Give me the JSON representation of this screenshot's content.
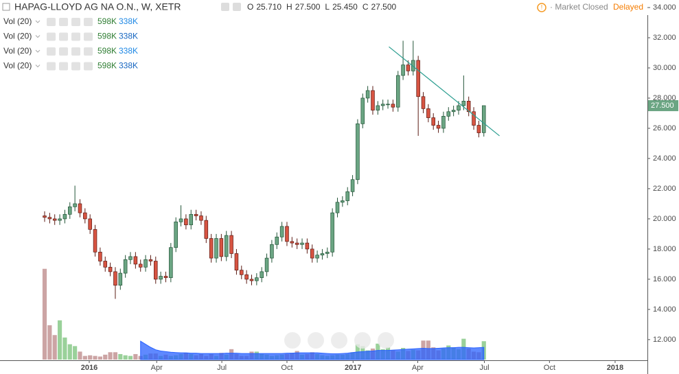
{
  "chart_data": {
    "type": "candlestick",
    "title": "HAPAG-LLOYD AG NA O.N., W, XETR",
    "ohlc_header": [
      {
        "label": "O",
        "value": "25.710"
      },
      {
        "label": "H",
        "value": "27.500"
      },
      {
        "label": "L",
        "value": "25.450"
      },
      {
        "label": "C",
        "value": "27.500"
      }
    ],
    "indicators": [
      {
        "name": "Vol (20)",
        "volume": "598K",
        "average": "338K"
      },
      {
        "name": "Vol (20)",
        "volume": "598K",
        "average": "338K"
      },
      {
        "name": "Vol (20)",
        "volume": "598K",
        "average": "338K"
      },
      {
        "name": "Vol (20)",
        "volume": "598K",
        "average": "338K"
      }
    ],
    "status": "Market Closed",
    "feed": "Delayed",
    "last_price": {
      "value": 27.5,
      "label": "27.500"
    },
    "up_color": "#6ba583",
    "down_color": "#d75442",
    "volume_up_color": "#8fcc8f",
    "volume_down_color": "#c79a9a",
    "volume_ma_color": "#2962ff",
    "x": [
      0,
      1,
      2,
      3,
      4,
      5,
      6,
      7,
      8,
      9,
      10,
      11,
      12,
      13,
      14,
      15,
      16,
      17,
      18,
      19,
      20,
      21,
      22,
      23,
      24,
      25,
      26,
      27,
      28,
      29,
      30,
      31,
      32,
      33,
      34,
      35,
      36,
      37,
      38,
      39,
      40,
      41,
      42,
      43,
      44,
      45,
      46,
      47,
      48,
      49,
      50,
      51,
      52,
      53,
      54,
      55,
      56,
      57,
      58,
      59,
      60,
      61,
      62,
      63,
      64,
      65,
      66,
      67,
      68,
      69,
      70,
      71,
      72,
      73,
      74,
      75,
      76,
      77,
      78,
      79,
      80,
      81,
      82,
      83,
      84,
      85,
      86,
      87
    ],
    "open": [
      20.2,
      20.1,
      20.0,
      19.9,
      20.0,
      20.3,
      20.8,
      21.0,
      20.4,
      20.0,
      19.3,
      17.8,
      17.2,
      16.8,
      16.5,
      15.6,
      16.4,
      17.3,
      17.5,
      17.0,
      16.8,
      17.3,
      17.2,
      16.0,
      16.2,
      16.1,
      18.1,
      19.8,
      20.0,
      19.6,
      20.3,
      20.2,
      19.9,
      18.7,
      17.4,
      18.7,
      17.5,
      18.9,
      17.7,
      16.6,
      16.3,
      16.0,
      15.9,
      16.1,
      16.5,
      17.4,
      18.3,
      18.8,
      19.5,
      18.5,
      18.4,
      18.3,
      18.4,
      18.0,
      17.4,
      17.6,
      17.7,
      17.8,
      20.4,
      21.1,
      21.2,
      21.8,
      22.6,
      26.3,
      28.0,
      28.5,
      27.2,
      27.5,
      27.6,
      27.6,
      27.4,
      29.5,
      30.2,
      29.8,
      30.5,
      28.1,
      27.3,
      26.7,
      26.2,
      26.0,
      26.8,
      27.1,
      27.2,
      27.5,
      27.8,
      27.1,
      26.2,
      25.71
    ],
    "high": [
      20.5,
      20.4,
      20.3,
      20.3,
      20.6,
      21.1,
      22.2,
      21.3,
      20.7,
      20.3,
      19.6,
      18.1,
      17.5,
      17.1,
      16.8,
      16.7,
      17.6,
      17.8,
      17.8,
      17.3,
      17.6,
      17.6,
      17.5,
      16.5,
      16.5,
      18.4,
      20.1,
      20.9,
      20.3,
      20.6,
      20.6,
      20.5,
      20.2,
      19.0,
      19.0,
      19.0,
      19.2,
      19.2,
      18.0,
      16.9,
      16.6,
      16.3,
      16.4,
      16.8,
      17.7,
      18.6,
      19.1,
      19.8,
      19.8,
      18.8,
      18.7,
      18.7,
      18.7,
      18.3,
      17.9,
      18.0,
      18.1,
      20.7,
      21.4,
      21.5,
      22.1,
      22.9,
      26.6,
      28.3,
      28.8,
      28.8,
      27.8,
      27.9,
      27.9,
      27.9,
      29.8,
      31.8,
      30.5,
      31.8,
      30.8,
      28.4,
      27.6,
      27.0,
      26.5,
      27.1,
      27.4,
      27.5,
      27.8,
      29.5,
      28.1,
      27.4,
      26.5,
      27.5
    ],
    "low": [
      19.8,
      19.7,
      19.6,
      19.6,
      19.7,
      20.0,
      20.5,
      20.1,
      19.7,
      19.0,
      17.5,
      16.9,
      16.5,
      16.2,
      14.7,
      15.3,
      16.1,
      17.0,
      16.7,
      16.5,
      16.5,
      16.9,
      15.7,
      15.7,
      15.8,
      15.8,
      17.8,
      19.5,
      19.3,
      19.3,
      19.9,
      19.6,
      18.4,
      17.1,
      17.1,
      17.2,
      17.2,
      17.4,
      16.3,
      16.0,
      15.7,
      15.6,
      15.6,
      15.8,
      16.2,
      17.1,
      18.0,
      18.5,
      18.2,
      18.1,
      18.0,
      18.0,
      17.7,
      17.1,
      17.1,
      17.3,
      17.4,
      17.5,
      20.1,
      20.8,
      20.9,
      21.5,
      22.3,
      26.0,
      27.7,
      26.9,
      26.9,
      27.2,
      27.3,
      27.1,
      27.1,
      29.2,
      29.5,
      29.5,
      25.5,
      27.0,
      26.4,
      25.9,
      25.7,
      25.7,
      26.5,
      26.8,
      26.9,
      27.2,
      26.8,
      25.9,
      25.4,
      25.45
    ],
    "close": [
      20.1,
      20.0,
      19.9,
      20.0,
      20.3,
      20.8,
      21.0,
      20.4,
      20.0,
      19.3,
      17.8,
      17.2,
      16.8,
      16.5,
      15.6,
      16.4,
      17.3,
      17.5,
      17.0,
      16.8,
      17.3,
      17.2,
      16.0,
      16.2,
      16.1,
      18.1,
      19.8,
      20.0,
      19.6,
      20.3,
      20.2,
      19.9,
      18.7,
      17.4,
      18.7,
      17.5,
      18.9,
      17.7,
      16.6,
      16.3,
      16.0,
      15.9,
      16.1,
      16.5,
      17.4,
      18.3,
      18.8,
      19.5,
      18.5,
      18.4,
      18.3,
      18.4,
      18.0,
      17.4,
      17.6,
      17.7,
      17.8,
      20.4,
      21.1,
      21.2,
      21.8,
      22.6,
      26.3,
      28.0,
      28.5,
      27.2,
      27.5,
      27.6,
      27.6,
      27.4,
      29.5,
      30.2,
      29.8,
      30.5,
      28.1,
      27.3,
      26.7,
      26.2,
      26.0,
      26.8,
      27.1,
      27.2,
      27.5,
      27.8,
      27.1,
      26.2,
      25.7,
      27.5
    ],
    "volume": [
      1480,
      560,
      400,
      640,
      360,
      250,
      220,
      130,
      60,
      70,
      60,
      50,
      80,
      120,
      120,
      90,
      70,
      60,
      90,
      60,
      80,
      100,
      100,
      60,
      80,
      60,
      70,
      90,
      110,
      90,
      70,
      90,
      60,
      90,
      60,
      110,
      80,
      170,
      90,
      60,
      60,
      130,
      130,
      90,
      80,
      60,
      70,
      80,
      90,
      110,
      140,
      80,
      90,
      120,
      90,
      70,
      60,
      70,
      80,
      80,
      90,
      120,
      250,
      220,
      150,
      180,
      260,
      170,
      200,
      150,
      130,
      190,
      140,
      160,
      150,
      310,
      310,
      200,
      150,
      180,
      230,
      200,
      170,
      340,
      180,
      130,
      120,
      300
    ],
    "volume_ma": [
      null,
      null,
      null,
      null,
      null,
      null,
      null,
      null,
      null,
      null,
      null,
      null,
      null,
      null,
      null,
      null,
      null,
      null,
      null,
      300,
      250,
      200,
      160,
      140,
      130,
      120,
      115,
      110,
      110,
      105,
      105,
      100,
      100,
      100,
      100,
      100,
      105,
      105,
      105,
      100,
      100,
      100,
      100,
      100,
      100,
      100,
      100,
      100,
      105,
      105,
      110,
      110,
      110,
      110,
      110,
      105,
      100,
      95,
      95,
      100,
      105,
      115,
      125,
      130,
      135,
      140,
      150,
      150,
      150,
      155,
      160,
      165,
      170,
      175,
      180,
      185,
      180,
      180,
      185,
      190,
      195,
      195,
      200,
      200,
      195,
      190,
      195,
      200
    ],
    "trend_line": {
      "x": [
        68.2,
        90.1
      ],
      "y": [
        31.4,
        25.5
      ]
    },
    "xlim": [
      -8.84,
      119.4
    ],
    "ylim": [
      10.63,
      34.5
    ],
    "volume_ylim": [
      0,
      1600
    ],
    "xticks": [
      {
        "value": 8.84,
        "label": "2016"
      },
      {
        "value": 22.2,
        "label": "Apr"
      },
      {
        "value": 35.1,
        "label": "Jul"
      },
      {
        "value": 48.0,
        "label": "Oct"
      },
      {
        "value": 61.1,
        "label": "2017"
      },
      {
        "value": 73.9,
        "label": "Apr"
      },
      {
        "value": 87.1,
        "label": "Jul"
      },
      {
        "value": 100.0,
        "label": "Oct"
      },
      {
        "value": 113.0,
        "label": "2018"
      }
    ],
    "yticks": [
      {
        "value": 12,
        "label": "12.000"
      },
      {
        "value": 14,
        "label": "14.000"
      },
      {
        "value": 16,
        "label": "16.000"
      },
      {
        "value": 18,
        "label": "18.000"
      },
      {
        "value": 20,
        "label": "20.000"
      },
      {
        "value": 22,
        "label": "22.000"
      },
      {
        "value": 24,
        "label": "24.000"
      },
      {
        "value": 26,
        "label": "26.000"
      },
      {
        "value": 28,
        "label": "28.000"
      },
      {
        "value": 30,
        "label": "30.000"
      },
      {
        "value": 32,
        "label": "32.000"
      },
      {
        "value": 34,
        "label": "34.000"
      }
    ]
  }
}
